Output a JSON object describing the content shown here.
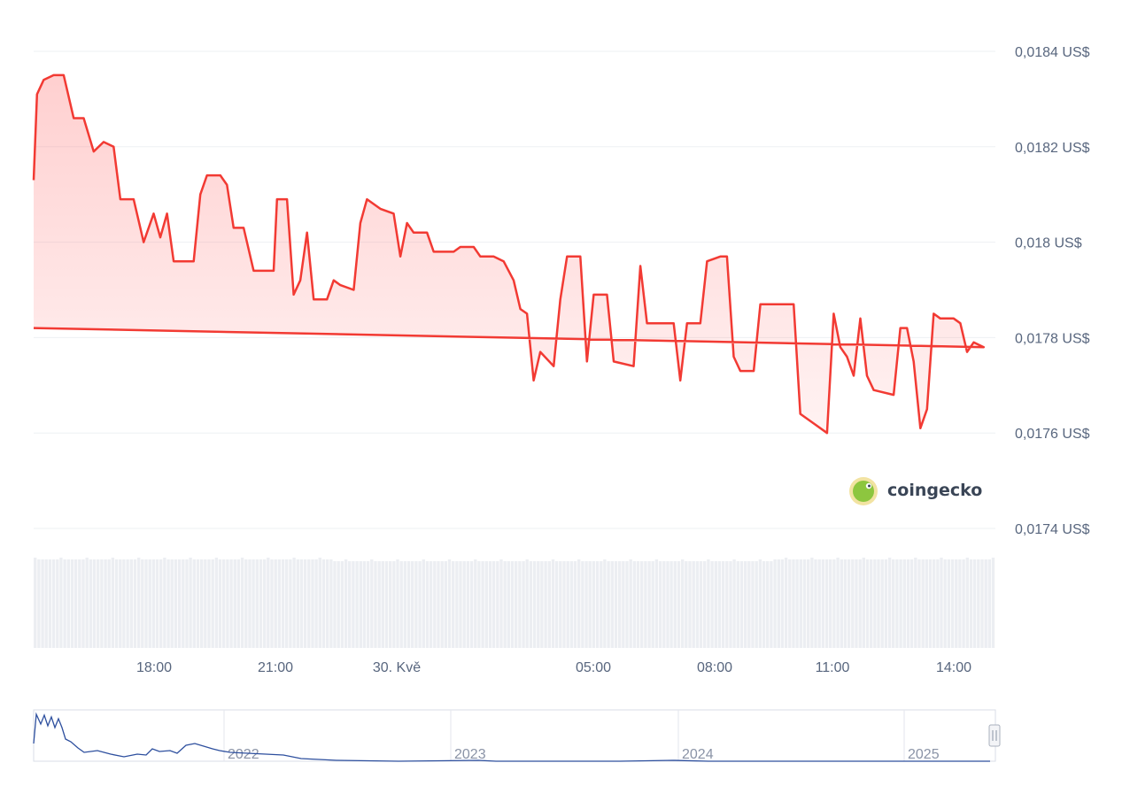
{
  "watermark": {
    "text": "coingecko"
  },
  "chart_data": {
    "type": "area",
    "currency_suffix": " US$",
    "ylim": [
      0.0174,
      0.0184
    ],
    "y_ticks": [
      "0,0184 US$",
      "0,0182 US$",
      "0,018 US$",
      "0,0178 US$",
      "0,0176 US$",
      "0,0174 US$"
    ],
    "x_ticks": [
      "18:00",
      "21:00",
      "30. Kvě",
      "05:00",
      "08:00",
      "11:00",
      "14:00"
    ],
    "line_color": "#f23a33",
    "fill_color": "#ff6b6b",
    "grid": true,
    "price_series": [
      [
        "15:00",
        0.01813
      ],
      [
        "15:05",
        0.01831
      ],
      [
        "15:15",
        0.01834
      ],
      [
        "15:30",
        0.01835
      ],
      [
        "15:45",
        0.01835
      ],
      [
        "16:00",
        0.01826
      ],
      [
        "16:15",
        0.01826
      ],
      [
        "16:30",
        0.01819
      ],
      [
        "16:45",
        0.01821
      ],
      [
        "17:00",
        0.0182
      ],
      [
        "17:10",
        0.01809
      ],
      [
        "17:30",
        0.01809
      ],
      [
        "17:45",
        0.018
      ],
      [
        "18:00",
        0.01806
      ],
      [
        "18:10",
        0.01801
      ],
      [
        "18:20",
        0.01806
      ],
      [
        "18:30",
        0.01796
      ],
      [
        "19:00",
        0.01796
      ],
      [
        "19:10",
        0.0181
      ],
      [
        "19:20",
        0.01814
      ],
      [
        "19:40",
        0.01814
      ],
      [
        "19:50",
        0.01812
      ],
      [
        "20:00",
        0.01803
      ],
      [
        "20:15",
        0.01803
      ],
      [
        "20:30",
        0.01794
      ],
      [
        "21:00",
        0.01794
      ],
      [
        "21:05",
        0.01809
      ],
      [
        "21:20",
        0.01809
      ],
      [
        "21:30",
        0.01789
      ],
      [
        "21:40",
        0.01792
      ],
      [
        "21:50",
        0.01802
      ],
      [
        "22:00",
        0.01788
      ],
      [
        "22:20",
        0.01788
      ],
      [
        "22:30",
        0.01792
      ],
      [
        "22:40",
        0.01791
      ],
      [
        "23:00",
        0.0179
      ],
      [
        "23:10",
        0.01804
      ],
      [
        "23:20",
        0.01809
      ],
      [
        "23:40",
        0.01807
      ],
      [
        "00:00",
        0.01806
      ],
      [
        "00:10",
        0.01797
      ],
      [
        "00:20",
        0.01804
      ],
      [
        "00:30",
        0.01802
      ],
      [
        "00:50",
        0.01802
      ],
      [
        "01:00",
        0.01798
      ],
      [
        "01:30",
        0.01798
      ],
      [
        "01:40",
        0.01799
      ],
      [
        "02:00",
        0.01799
      ],
      [
        "02:10",
        0.01797
      ],
      [
        "02:30",
        0.01797
      ],
      [
        "02:45",
        0.01796
      ],
      [
        "03:00",
        0.01792
      ],
      [
        "03:10",
        0.01786
      ],
      [
        "03:20",
        0.01785
      ],
      [
        "03:30",
        0.01771
      ],
      [
        "03:40",
        0.01777
      ],
      [
        "04:00",
        0.01774
      ],
      [
        "04:10",
        0.01788
      ],
      [
        "04:20",
        0.01797
      ],
      [
        "04:40",
        0.01797
      ],
      [
        "04:50",
        0.01775
      ],
      [
        "05:00",
        0.01789
      ],
      [
        "05:20",
        0.01789
      ],
      [
        "05:30",
        0.01775
      ],
      [
        "06:00",
        0.01774
      ],
      [
        "06:10",
        0.01795
      ],
      [
        "06:20",
        0.01783
      ],
      [
        "07:00",
        0.01783
      ],
      [
        "07:10",
        0.01771
      ],
      [
        "07:20",
        0.01783
      ],
      [
        "07:40",
        0.01783
      ],
      [
        "07:50",
        0.01796
      ],
      [
        "08:10",
        0.01797
      ],
      [
        "08:20",
        0.01797
      ],
      [
        "08:30",
        0.01776
      ],
      [
        "08:40",
        0.01773
      ],
      [
        "09:00",
        0.01773
      ],
      [
        "09:10",
        0.01787
      ],
      [
        "09:30",
        0.01787
      ],
      [
        "10:00",
        0.01787
      ],
      [
        "10:10",
        0.01764
      ],
      [
        "10:30",
        0.01762
      ],
      [
        "10:50",
        0.0176
      ],
      [
        "11:00",
        0.01785
      ],
      [
        "11:10",
        0.01778
      ],
      [
        "11:20",
        0.01776
      ],
      [
        "11:30",
        0.01772
      ],
      [
        "11:40",
        0.01784
      ],
      [
        "11:50",
        0.01772
      ],
      [
        "12:00",
        0.01769
      ],
      [
        "12:30",
        0.01768
      ],
      [
        "12:40",
        0.01782
      ],
      [
        "12:50",
        0.01782
      ],
      [
        "13:00",
        0.01775
      ],
      [
        "13:10",
        0.01761
      ],
      [
        "13:20",
        0.01765
      ],
      [
        "13:30",
        0.01785
      ],
      [
        "13:40",
        0.01784
      ],
      [
        "14:00",
        0.01784
      ],
      [
        "14:10",
        0.01783
      ],
      [
        "14:20",
        0.01777
      ],
      [
        "14:30",
        0.01779
      ],
      [
        "14:45",
        0.01778
      ],
      [
        "15:00",
        0.01782
      ]
    ]
  },
  "navigator": {
    "years": [
      "2022",
      "2023",
      "2024",
      "2025"
    ],
    "line_color": "#2d4f9e",
    "grip_icon": "grip-handle-icon"
  }
}
